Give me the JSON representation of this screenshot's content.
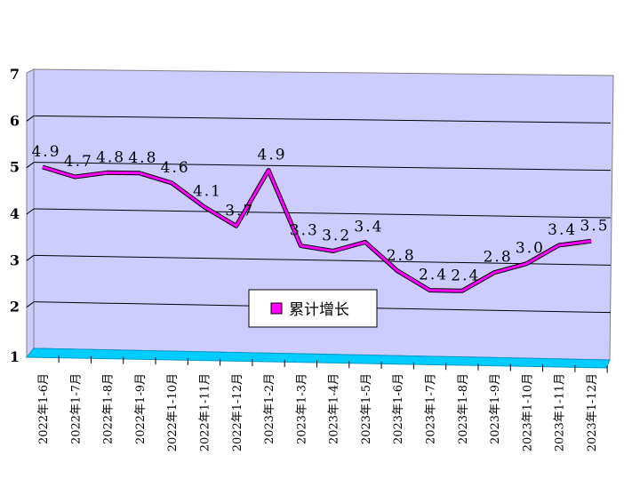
{
  "chart_data": {
    "type": "line",
    "title": "",
    "xlabel": "",
    "ylabel": "",
    "ylim": [
      1,
      7
    ],
    "yticks": [
      "1",
      "2",
      "3",
      "4",
      "5",
      "6",
      "7"
    ],
    "grid": true,
    "legend_position": "center-bottom",
    "categories": [
      "2022年1-6月",
      "2022年1-7月",
      "2022年1-8月",
      "2022年1-9月",
      "2022年1-10月",
      "2022年1-11月",
      "2022年1-12月",
      "2023年1-2月",
      "2023年1-3月",
      "2023年1-4月",
      "2023年1-5月",
      "2023年1-6月",
      "2023年1-7月",
      "2023年1-8月",
      "2023年1-9月",
      "2023年1-10月",
      "2023年1-11月",
      "2023年1-12月"
    ],
    "series": [
      {
        "name": "累计增长",
        "color": "#ff00ff",
        "values": [
          4.9,
          4.7,
          4.8,
          4.8,
          4.6,
          4.1,
          3.7,
          4.9,
          3.3,
          3.2,
          3.4,
          2.8,
          2.4,
          2.4,
          2.8,
          3.0,
          3.4,
          3.5
        ],
        "labels": [
          "4.9",
          "4.7",
          "4.8",
          "4.8",
          "4.6",
          "4.1",
          "3.7",
          "4.9",
          "3.3",
          "3.2",
          "3.4",
          "2.8",
          "2.4",
          "2.4",
          "2.8",
          "3.0",
          "3.4",
          "3.5"
        ]
      }
    ],
    "colors": {
      "wall": "#ccccff",
      "floor": "#00ccff"
    }
  }
}
